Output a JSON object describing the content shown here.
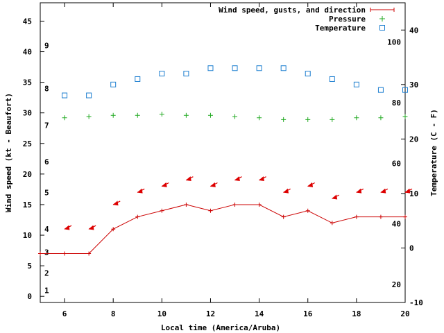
{
  "chart_data": {
    "type": "line",
    "xlabel": "Local time (America/Aruba)",
    "ylabel_left": "Wind speed (kt - Beaufort)",
    "ylabel_right": "Temperature (C - F)",
    "xlim": [
      5,
      20
    ],
    "ylim_left": [
      -1,
      48
    ],
    "ylim_right": [
      -10,
      45
    ],
    "x_ticks": [
      6,
      8,
      10,
      12,
      14,
      16,
      18,
      20
    ],
    "y_left_ticks": [
      0,
      5,
      10,
      15,
      20,
      25,
      30,
      35,
      40,
      45
    ],
    "y_right_ticks": [
      -10,
      0,
      10,
      20,
      30,
      40
    ],
    "beaufort_labels": [
      {
        "label": "1",
        "kt": 1
      },
      {
        "label": "2",
        "kt": 3.8
      },
      {
        "label": "3",
        "kt": 7.2
      },
      {
        "label": "4",
        "kt": 11
      },
      {
        "label": "5",
        "kt": 17
      },
      {
        "label": "6",
        "kt": 22
      },
      {
        "label": "7",
        "kt": 28
      },
      {
        "label": "8",
        "kt": 34
      },
      {
        "label": "9",
        "kt": 41
      }
    ],
    "fahrenheit_labels": [
      {
        "label": "20",
        "f": 20
      },
      {
        "label": "40",
        "f": 40
      },
      {
        "label": "60",
        "f": 60
      },
      {
        "label": "80",
        "f": 80
      },
      {
        "label": "100",
        "f": 100
      }
    ],
    "legend": [
      {
        "label": "Wind speed, gusts, and direction",
        "marker": "line-plus",
        "color": "#cc0000"
      },
      {
        "label": "Pressure",
        "marker": "plus",
        "color": "#22aa22"
      },
      {
        "label": "Temperature",
        "marker": "square",
        "color": "#1e7fd0"
      }
    ],
    "series": [
      {
        "name": "Wind speed",
        "axis": "left",
        "color": "#cc0000",
        "x": [
          5,
          6,
          7,
          8,
          9,
          10,
          11,
          12,
          13,
          14,
          15,
          16,
          17,
          18,
          19,
          20
        ],
        "values": [
          7,
          7,
          7,
          11,
          13,
          14,
          15,
          14,
          15,
          15,
          13,
          14,
          12,
          13,
          13,
          13
        ]
      },
      {
        "name": "Wind direction",
        "axis": "left",
        "color": "#dd0000",
        "x": [
          6,
          7,
          8,
          9,
          10,
          11,
          12,
          13,
          14,
          15,
          16,
          17,
          18,
          19,
          20
        ],
        "values": [
          11,
          11,
          15,
          17,
          18,
          19,
          18,
          19,
          19,
          17,
          18,
          16,
          17,
          17,
          17
        ]
      },
      {
        "name": "Pressure",
        "axis": "left",
        "color": "#22aa22",
        "x": [
          6,
          7,
          8,
          9,
          10,
          11,
          12,
          13,
          14,
          15,
          16,
          17,
          18,
          19,
          20
        ],
        "values": [
          29.2,
          29.4,
          29.6,
          29.6,
          29.8,
          29.6,
          29.6,
          29.4,
          29.2,
          28.9,
          28.9,
          28.9,
          29.2,
          29.2,
          29.4
        ]
      },
      {
        "name": "Temperature",
        "axis": "right",
        "color": "#1e7fd0",
        "x": [
          6,
          7,
          8,
          9,
          10,
          11,
          12,
          13,
          14,
          15,
          16,
          17,
          18,
          19,
          20
        ],
        "values": [
          28,
          28,
          30,
          31,
          32,
          32,
          33,
          33,
          33,
          33,
          32,
          31,
          30,
          29,
          29
        ]
      }
    ]
  }
}
